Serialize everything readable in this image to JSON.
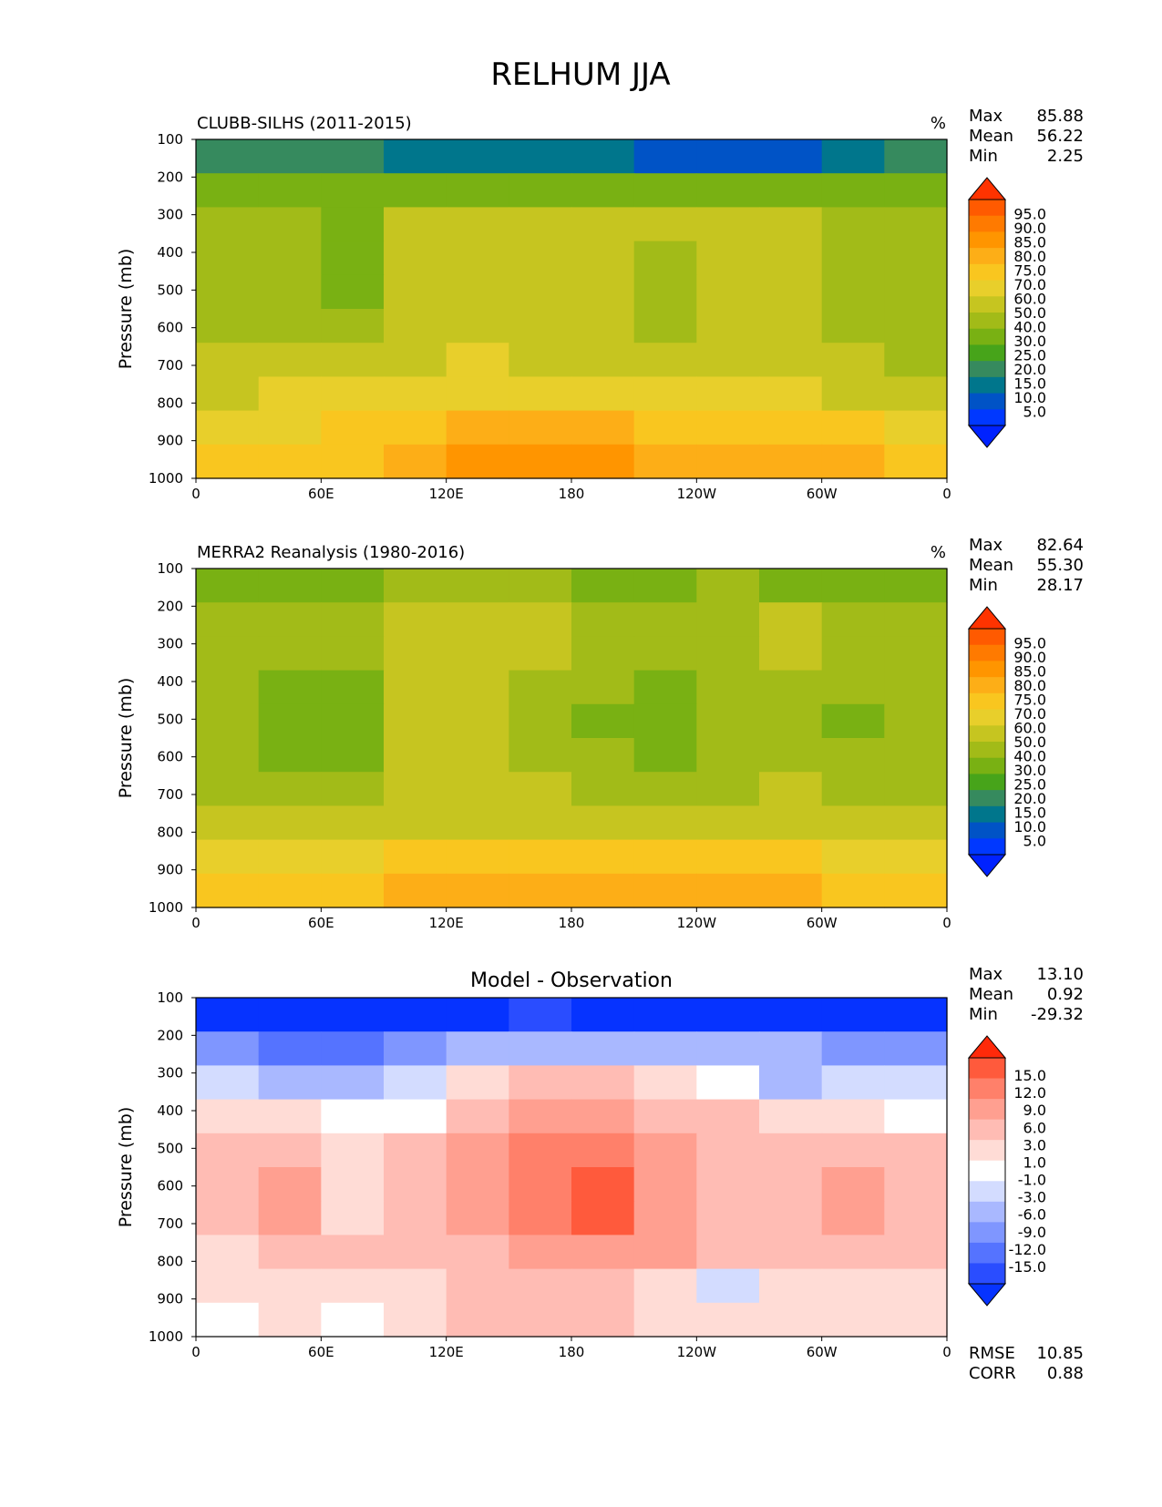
{
  "figure_title": "RELHUM JJA",
  "chart_data": [
    {
      "type": "heatmap",
      "title": "CLUBB-SILHS (2011-2015)",
      "units": "%",
      "ylabel": "Pressure (mb)",
      "x_ticks": [
        "0",
        "60E",
        "120E",
        "180",
        "120W",
        "60W",
        "0"
      ],
      "y_ticks": [
        "100",
        "200",
        "300",
        "400",
        "500",
        "600",
        "700",
        "800",
        "900",
        "1000"
      ],
      "x_range": [
        0,
        360
      ],
      "y_range": [
        100,
        1000
      ],
      "stats": {
        "max_label": "Max",
        "max": "85.88",
        "mean_label": "Mean",
        "mean": "56.22",
        "min_label": "Min",
        "min": "2.25"
      },
      "colorbar": {
        "levels": [
          "95.0",
          "90.0",
          "85.0",
          "80.0",
          "75.0",
          "70.0",
          "60.0",
          "50.0",
          "40.0",
          "30.0",
          "25.0",
          "20.0",
          "15.0",
          "10.0",
          "5.0"
        ],
        "colors": [
          "#ff3300",
          "#ff5a00",
          "#ff7a00",
          "#ff9500",
          "#fdae17",
          "#f9c61f",
          "#e8cf2b",
          "#c6c520",
          "#a2bb18",
          "#79b113",
          "#47a41a",
          "#368a5e",
          "#00768c",
          "#0053c6",
          "#0038ff",
          "#0022ff"
        ]
      },
      "field": [
        [
          22,
          22,
          20,
          18,
          18,
          18,
          16,
          12,
          10,
          10,
          18,
          22
        ],
        [
          38,
          32,
          32,
          36,
          36,
          36,
          38,
          34,
          34,
          34,
          36,
          38
        ],
        [
          48,
          48,
          38,
          52,
          52,
          52,
          52,
          52,
          52,
          52,
          48,
          48
        ],
        [
          48,
          48,
          34,
          52,
          52,
          52,
          52,
          48,
          52,
          52,
          44,
          44
        ],
        [
          48,
          46,
          34,
          52,
          52,
          52,
          52,
          46,
          52,
          52,
          44,
          44
        ],
        [
          48,
          46,
          40,
          52,
          56,
          52,
          52,
          48,
          52,
          52,
          44,
          44
        ],
        [
          52,
          52,
          50,
          58,
          60,
          56,
          56,
          52,
          56,
          56,
          50,
          48
        ],
        [
          56,
          62,
          64,
          64,
          66,
          64,
          64,
          62,
          62,
          60,
          56,
          52
        ],
        [
          62,
          68,
          70,
          74,
          76,
          78,
          78,
          72,
          70,
          70,
          70,
          62
        ],
        [
          70,
          72,
          72,
          76,
          80,
          82,
          82,
          78,
          78,
          78,
          76,
          72
        ]
      ]
    },
    {
      "type": "heatmap",
      "title": "MERRA2 Reanalysis (1980-2016)",
      "units": "%",
      "ylabel": "Pressure (mb)",
      "x_ticks": [
        "0",
        "60E",
        "120E",
        "180",
        "120W",
        "60W",
        "0"
      ],
      "y_ticks": [
        "100",
        "200",
        "300",
        "400",
        "500",
        "600",
        "700",
        "800",
        "900",
        "1000"
      ],
      "x_range": [
        0,
        360
      ],
      "y_range": [
        100,
        1000
      ],
      "stats": {
        "max_label": "Max",
        "max": "82.64",
        "mean_label": "Mean",
        "mean": "55.30",
        "min_label": "Min",
        "min": "28.17"
      },
      "colorbar": {
        "levels": [
          "95.0",
          "90.0",
          "85.0",
          "80.0",
          "75.0",
          "70.0",
          "60.0",
          "50.0",
          "40.0",
          "30.0",
          "25.0",
          "20.0",
          "15.0",
          "10.0",
          "5.0"
        ],
        "colors": [
          "#ff3300",
          "#ff5a00",
          "#ff7a00",
          "#ff9500",
          "#fdae17",
          "#f9c61f",
          "#e8cf2b",
          "#c6c520",
          "#a2bb18",
          "#79b113",
          "#47a41a",
          "#368a5e",
          "#00768c",
          "#0053c6",
          "#0038ff",
          "#0022ff"
        ]
      },
      "field": [
        [
          36,
          36,
          38,
          40,
          40,
          40,
          38,
          38,
          40,
          38,
          36,
          36
        ],
        [
          44,
          44,
          44,
          52,
          52,
          52,
          44,
          48,
          48,
          52,
          44,
          44
        ],
        [
          46,
          44,
          40,
          52,
          52,
          50,
          44,
          48,
          44,
          52,
          44,
          48
        ],
        [
          46,
          38,
          36,
          52,
          52,
          48,
          40,
          36,
          42,
          46,
          40,
          44
        ],
        [
          46,
          36,
          34,
          50,
          52,
          46,
          38,
          32,
          42,
          46,
          36,
          44
        ],
        [
          46,
          38,
          36,
          50,
          52,
          46,
          40,
          36,
          42,
          46,
          40,
          44
        ],
        [
          48,
          46,
          44,
          50,
          52,
          50,
          46,
          46,
          46,
          50,
          46,
          46
        ],
        [
          54,
          54,
          54,
          56,
          58,
          56,
          56,
          56,
          56,
          56,
          54,
          52
        ],
        [
          62,
          66,
          68,
          72,
          74,
          74,
          74,
          74,
          70,
          70,
          68,
          66
        ],
        [
          70,
          72,
          72,
          76,
          76,
          78,
          78,
          76,
          76,
          76,
          74,
          72
        ]
      ]
    },
    {
      "type": "heatmap",
      "title": "Model - Observation",
      "units": "",
      "ylabel": "Pressure (mb)",
      "x_ticks": [
        "0",
        "60E",
        "120E",
        "180",
        "120W",
        "60W",
        "0"
      ],
      "y_ticks": [
        "100",
        "200",
        "300",
        "400",
        "500",
        "600",
        "700",
        "800",
        "900",
        "1000"
      ],
      "x_range": [
        0,
        360
      ],
      "y_range": [
        100,
        1000
      ],
      "stats": {
        "max_label": "Max",
        "max": "13.10",
        "mean_label": "Mean",
        "mean": "0.92",
        "min_label": "Min",
        "min": "-29.32"
      },
      "metrics": {
        "rmse_label": "RMSE",
        "rmse": "10.85",
        "corr_label": "CORR",
        "corr": "0.88"
      },
      "colorbar": {
        "levels": [
          "15.0",
          "12.0",
          "9.0",
          "6.0",
          "3.0",
          "1.0",
          "-1.0",
          "-3.0",
          "-6.0",
          "-9.0",
          "-12.0",
          "-15.0"
        ],
        "colors": [
          "#ff2a0a",
          "#ff5a3c",
          "#ff806a",
          "#ff9f90",
          "#ffbcb4",
          "#ffdcd6",
          "#ffffff",
          "#d3dcff",
          "#a9b8ff",
          "#7f96ff",
          "#5573ff",
          "#2a4dff",
          "#0633ff"
        ]
      },
      "field": [
        [
          -20,
          -20,
          -20,
          -18,
          -16,
          -14,
          -18,
          -20,
          -20,
          -20,
          -20,
          -20
        ],
        [
          -8,
          -10,
          -10,
          -8,
          -6,
          -4,
          -4,
          -4,
          -6,
          -6,
          -8,
          -8
        ],
        [
          -2,
          -6,
          -6,
          -2,
          2,
          4,
          4,
          2,
          -1,
          -4,
          -2,
          -2
        ],
        [
          2,
          2,
          -1,
          0,
          4,
          6,
          6,
          4,
          4,
          2,
          2,
          0
        ],
        [
          3,
          4,
          2,
          3,
          6,
          9,
          10,
          6,
          4,
          4,
          3,
          3
        ],
        [
          4,
          6,
          2,
          4,
          6,
          10,
          12,
          8,
          5,
          4,
          6,
          4
        ],
        [
          3,
          6,
          2,
          4,
          6,
          10,
          12,
          8,
          5,
          4,
          7,
          4
        ],
        [
          2,
          4,
          3,
          3,
          5,
          8,
          8,
          6,
          4,
          3,
          5,
          3
        ],
        [
          1,
          2,
          1,
          2,
          4,
          4,
          4,
          2,
          -2,
          2,
          2,
          1
        ],
        [
          0,
          1,
          0,
          2,
          3,
          3,
          3,
          2,
          1,
          2,
          2,
          1
        ]
      ]
    }
  ]
}
